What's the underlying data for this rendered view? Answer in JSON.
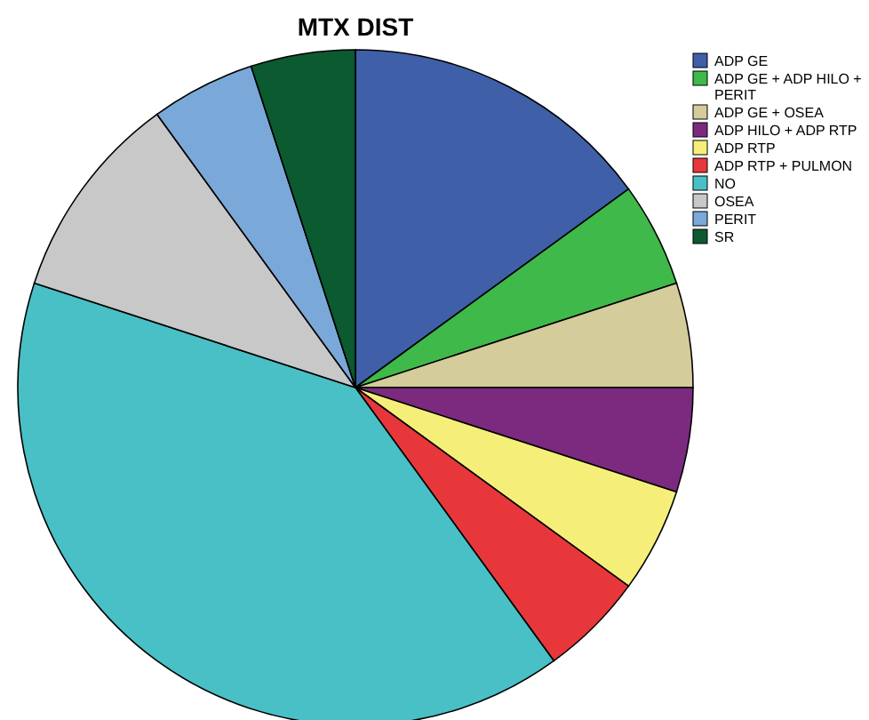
{
  "chart_data": {
    "type": "pie",
    "title": "MTX DIST",
    "categories": [
      "ADP GE",
      "ADP GE + ADP HILO + PERIT",
      "ADP GE + OSEA",
      "ADP HILO + ADP RTP",
      "ADP RTP",
      "ADP RTP + PULMON",
      "NO",
      "OSEA",
      "PERIT",
      "SR"
    ],
    "values": [
      15,
      5,
      5,
      5,
      5,
      5,
      40,
      10,
      5,
      5
    ],
    "colors": [
      "#3f5fa8",
      "#3fb94a",
      "#d4cc9a",
      "#7b2a7f",
      "#f5ef7a",
      "#e8373a",
      "#48c0c6",
      "#c8c8c8",
      "#7aa8d8",
      "#0b5a30"
    ],
    "legend": "top right"
  }
}
